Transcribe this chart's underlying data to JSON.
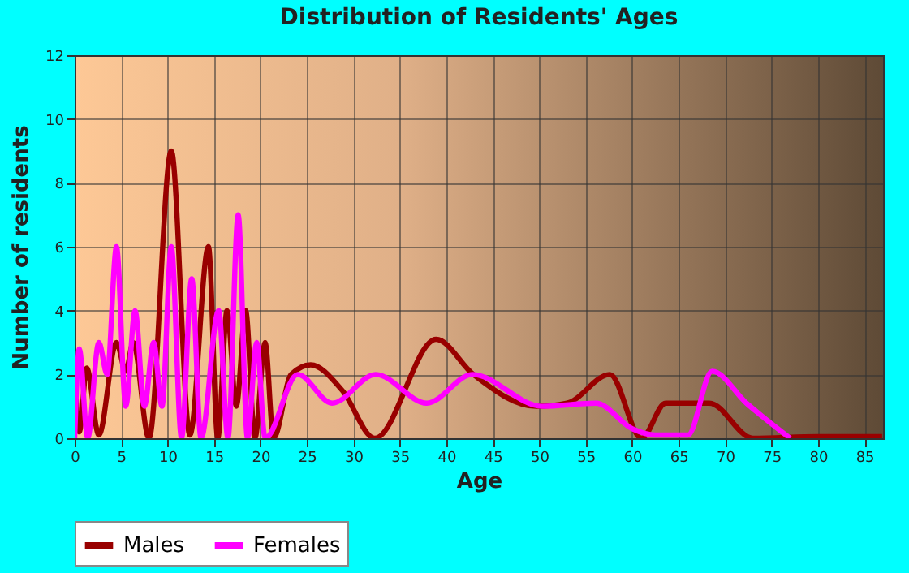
{
  "chart_data": {
    "type": "line",
    "title": "Distribution of Residents' Ages",
    "xlabel": "Age",
    "ylabel": "Number of residents",
    "xlim": [
      0,
      87
    ],
    "xticks": [
      0,
      5,
      10,
      15,
      20,
      25,
      30,
      35,
      40,
      45,
      50,
      55,
      60,
      65,
      70,
      75,
      80,
      85
    ],
    "ylim": [
      0,
      12
    ],
    "yticks": [
      0,
      2,
      4,
      6,
      8,
      10,
      12
    ],
    "grid": true,
    "legend": "bottom",
    "marker": "none",
    "line_style": "solid",
    "series": [
      {
        "name": "Males",
        "color": "#990000",
        "x": [
          0,
          0.5,
          1.3,
          2.6,
          4.5,
          5.5,
          6.3,
          8,
          10.4,
          12.4,
          14.4,
          15.4,
          16.4,
          17.4,
          18.4,
          19.4,
          20.5,
          21.4,
          23.3,
          25.4,
          28.8,
          32.3,
          38.9,
          42.9,
          49.7,
          53,
          57.6,
          61,
          63.6,
          68.3,
          73,
          80,
          86.9
        ],
        "values": [
          2.1,
          0.2,
          2.2,
          0.1,
          3,
          2.1,
          3,
          0,
          9,
          0.1,
          6,
          0,
          4,
          1,
          4,
          0,
          3,
          0,
          2,
          2.3,
          1.5,
          0,
          3.1,
          2,
          1,
          1.1,
          2,
          0,
          1.1,
          1.1,
          0,
          0.05,
          0.05
        ]
      },
      {
        "name": "Females",
        "color": "#ff00ff",
        "x": [
          0,
          0.5,
          1.4,
          2.6,
          3.5,
          4.5,
          5.5,
          6.5,
          7.5,
          8.5,
          9.4,
          10.4,
          11.5,
          12.6,
          13.6,
          15.5,
          16.5,
          17.6,
          18.6,
          19.6,
          20.5,
          24,
          27.7,
          32.4,
          37.9,
          42.8,
          50.3,
          56.1,
          60,
          62.5,
          66,
          68.6,
          72.3,
          77
        ],
        "values": [
          0,
          2.8,
          0,
          3,
          2,
          6,
          1,
          4,
          1,
          3,
          1,
          6,
          0,
          5,
          0,
          4,
          0,
          7,
          0,
          3,
          0,
          2,
          1.1,
          2,
          1.1,
          2,
          1,
          1.1,
          0.3,
          0.1,
          0.1,
          2.1,
          1.1,
          0
        ]
      }
    ]
  }
}
